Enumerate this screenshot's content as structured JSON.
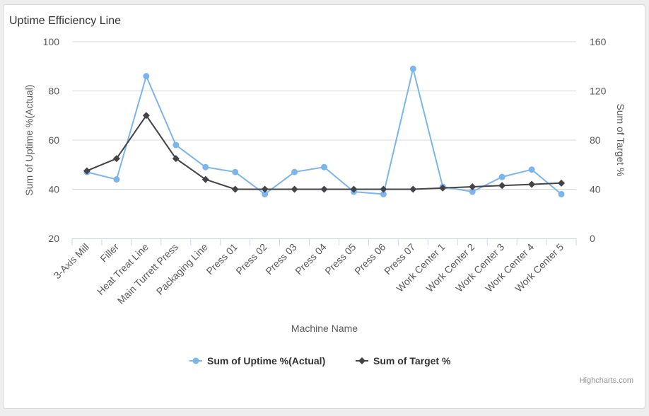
{
  "panel": {
    "title": "Uptime Efficiency Line"
  },
  "chart_data": {
    "type": "line",
    "title": "",
    "xlabel": "Machine Name",
    "ylabel_left": "Sum of Uptime %(Actual)",
    "ylabel_right": "Sum of Target %",
    "ylim_left": [
      20,
      100
    ],
    "yticks_left": [
      20,
      40,
      60,
      80,
      100
    ],
    "ylim_right": [
      0,
      160
    ],
    "yticks_right": [
      0,
      40,
      80,
      120,
      160
    ],
    "grid": true,
    "legend_position": "bottom-center",
    "categories": [
      "3-Axis Mill",
      "Filler",
      "Heat Treat Line",
      "Main Turrett Press",
      "Packaging Line",
      "Press 01",
      "Press 02",
      "Press 03",
      "Press 04",
      "Press 05",
      "Press 06",
      "Press 07",
      "Work Center 1",
      "Work Center 2",
      "Work Center 3",
      "Work Center 4",
      "Work Center 5"
    ],
    "series": [
      {
        "name": "Sum of Uptime %(Actual)",
        "axis": "left",
        "color": "#7cb5ec",
        "marker": "circle",
        "values": [
          47,
          44,
          86,
          58,
          49,
          47,
          38,
          47,
          49,
          39,
          38,
          89,
          41,
          39,
          45,
          48,
          38
        ]
      },
      {
        "name": "Sum of Target %",
        "axis": "right",
        "color": "#434348",
        "marker": "diamond",
        "values": [
          55,
          65,
          100,
          65,
          48,
          40,
          40,
          40,
          40,
          40,
          40,
          40,
          41,
          42,
          43,
          44,
          45
        ]
      }
    ],
    "credits": "Highcharts.com"
  }
}
